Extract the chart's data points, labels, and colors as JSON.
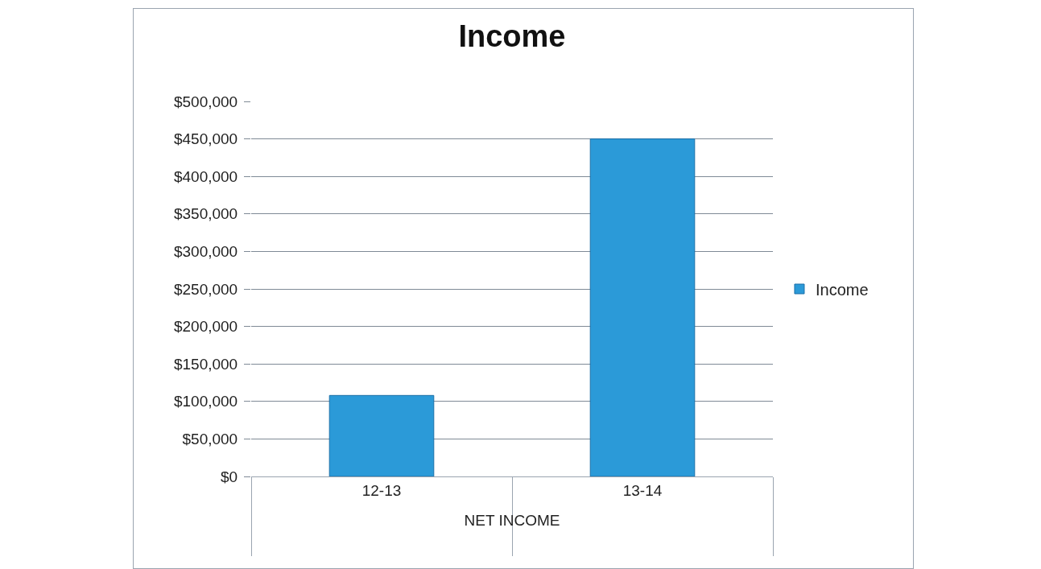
{
  "chart_data": {
    "type": "bar",
    "title": "Income",
    "xlabel": "NET INCOME",
    "categories": [
      "12-13",
      "13-14"
    ],
    "series": [
      {
        "name": "Income",
        "color": "#2b9ad8",
        "values": [
          108000,
          450000
        ]
      }
    ],
    "ylim": [
      0,
      500000
    ],
    "yticks": [
      {
        "value": 0,
        "label": "$0"
      },
      {
        "value": 50000,
        "label": "$50,000"
      },
      {
        "value": 100000,
        "label": "$100,000"
      },
      {
        "value": 150000,
        "label": "$150,000"
      },
      {
        "value": 200000,
        "label": "$200,000"
      },
      {
        "value": 250000,
        "label": "$250,000"
      },
      {
        "value": 300000,
        "label": "$300,000"
      },
      {
        "value": 350000,
        "label": "$350,000"
      },
      {
        "value": 400000,
        "label": "$400,000"
      },
      {
        "value": 450000,
        "label": "$450,000"
      },
      {
        "value": 500000,
        "label": "$500,000"
      }
    ],
    "grid": "y",
    "legend": "right"
  }
}
